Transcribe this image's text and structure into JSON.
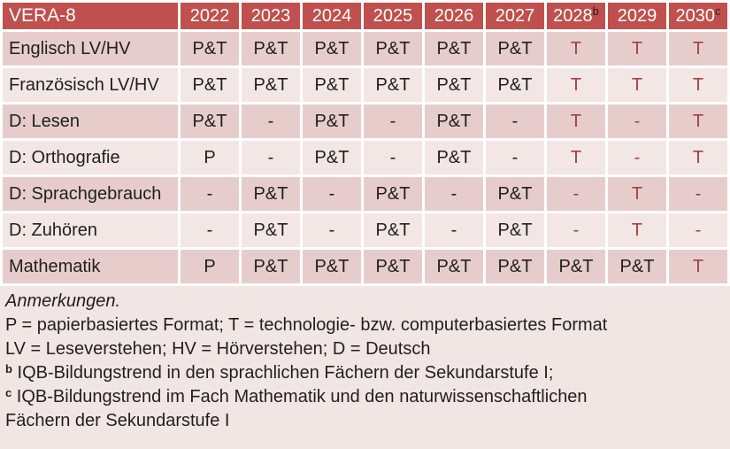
{
  "colors": {
    "header_bg": "#c0504d",
    "header_text": "#ffffff",
    "sup_dark": "#1f1f1f",
    "band_dark": "#e6cdcc",
    "band_light": "#f3e7e6",
    "notes_bg": "#f2e6e5",
    "text_black": "#1f1f1f",
    "text_red": "#a04040"
  },
  "table": {
    "corner_label": "VERA-8",
    "years": [
      {
        "text": "2022",
        "sup": ""
      },
      {
        "text": "2023",
        "sup": ""
      },
      {
        "text": "2024",
        "sup": ""
      },
      {
        "text": "2025",
        "sup": ""
      },
      {
        "text": "2026",
        "sup": ""
      },
      {
        "text": "2027",
        "sup": ""
      },
      {
        "text": "2028",
        "sup": "b"
      },
      {
        "text": "2029",
        "sup": ""
      },
      {
        "text": "2030",
        "sup": "c"
      }
    ],
    "rows": [
      {
        "label": "Englisch LV/HV",
        "cells": [
          {
            "text": "P&T",
            "red": false
          },
          {
            "text": "P&T",
            "red": false
          },
          {
            "text": "P&T",
            "red": false
          },
          {
            "text": "P&T",
            "red": false
          },
          {
            "text": "P&T",
            "red": false
          },
          {
            "text": "P&T",
            "red": false
          },
          {
            "text": "T",
            "red": true
          },
          {
            "text": "T",
            "red": true
          },
          {
            "text": "T",
            "red": true
          }
        ]
      },
      {
        "label": "Französisch LV/HV",
        "cells": [
          {
            "text": "P&T",
            "red": false
          },
          {
            "text": "P&T",
            "red": false
          },
          {
            "text": "P&T",
            "red": false
          },
          {
            "text": "P&T",
            "red": false
          },
          {
            "text": "P&T",
            "red": false
          },
          {
            "text": "P&T",
            "red": false
          },
          {
            "text": "T",
            "red": true
          },
          {
            "text": "T",
            "red": true
          },
          {
            "text": "T",
            "red": true
          }
        ]
      },
      {
        "label": "D: Lesen",
        "cells": [
          {
            "text": "P&T",
            "red": false
          },
          {
            "text": "-",
            "red": false
          },
          {
            "text": "P&T",
            "red": false
          },
          {
            "text": "-",
            "red": false
          },
          {
            "text": "P&T",
            "red": false
          },
          {
            "text": "-",
            "red": false
          },
          {
            "text": "T",
            "red": true
          },
          {
            "text": "-",
            "red": true
          },
          {
            "text": "T",
            "red": true
          }
        ]
      },
      {
        "label": "D: Orthografie",
        "cells": [
          {
            "text": "P",
            "red": false
          },
          {
            "text": "-",
            "red": false
          },
          {
            "text": "P&T",
            "red": false
          },
          {
            "text": "-",
            "red": false
          },
          {
            "text": "P&T",
            "red": false
          },
          {
            "text": "-",
            "red": false
          },
          {
            "text": "T",
            "red": true
          },
          {
            "text": "-",
            "red": true
          },
          {
            "text": "T",
            "red": true
          }
        ]
      },
      {
        "label": "D: Sprachgebrauch",
        "cells": [
          {
            "text": "-",
            "red": false
          },
          {
            "text": "P&T",
            "red": false
          },
          {
            "text": "-",
            "red": false
          },
          {
            "text": "P&T",
            "red": false
          },
          {
            "text": "-",
            "red": false
          },
          {
            "text": "P&T",
            "red": false
          },
          {
            "text": "-",
            "red": true
          },
          {
            "text": "T",
            "red": true
          },
          {
            "text": "-",
            "red": true
          }
        ]
      },
      {
        "label": "D: Zuhören",
        "cells": [
          {
            "text": "-",
            "red": false
          },
          {
            "text": "P&T",
            "red": false
          },
          {
            "text": "-",
            "red": false
          },
          {
            "text": "P&T",
            "red": false
          },
          {
            "text": "-",
            "red": false
          },
          {
            "text": "P&T",
            "red": false
          },
          {
            "text": "-",
            "red": true
          },
          {
            "text": "T",
            "red": true
          },
          {
            "text": "-",
            "red": true
          }
        ]
      },
      {
        "label": "Mathematik",
        "cells": [
          {
            "text": "P",
            "red": false
          },
          {
            "text": "P&T",
            "red": false
          },
          {
            "text": "P&T",
            "red": false
          },
          {
            "text": "P&T",
            "red": false
          },
          {
            "text": "P&T",
            "red": false
          },
          {
            "text": "P&T",
            "red": false
          },
          {
            "text": "P&T",
            "red": false
          },
          {
            "text": "P&T",
            "red": false
          },
          {
            "text": "T",
            "red": true
          }
        ]
      }
    ]
  },
  "notes": {
    "title": "Anmerkungen.",
    "line_formats": "P = papierbasiertes Format; T = technologie- bzw. computerbasiertes Format",
    "line_abbrev": "LV = Leseverstehen; HV = Hörverstehen; D = Deutsch",
    "note_b": {
      "sup": "b",
      "text": " IQB-Bildungstrend in den sprachlichen Fächern der Sekundarstufe I;"
    },
    "note_c": {
      "sup": "c",
      "line1": " IQB-Bildungstrend im Fach Mathematik und den naturwissenschaftlichen",
      "line2": "Fächern der Sekundarstufe I"
    }
  }
}
